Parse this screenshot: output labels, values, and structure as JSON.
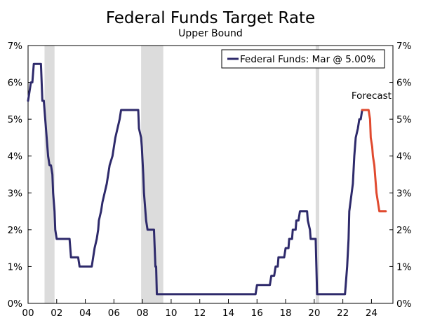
{
  "chart_data": {
    "type": "line",
    "title": "Federal Funds Target Rate",
    "subtitle": "Upper Bound",
    "xlabel": "",
    "ylabel": "",
    "xlim": [
      2000,
      2025.5
    ],
    "ylim": [
      0,
      7
    ],
    "x_ticks": [
      {
        "value": 2000,
        "label": "00"
      },
      {
        "value": 2002,
        "label": "02"
      },
      {
        "value": 2004,
        "label": "04"
      },
      {
        "value": 2006,
        "label": "06"
      },
      {
        "value": 2008,
        "label": "08"
      },
      {
        "value": 2010,
        "label": "10"
      },
      {
        "value": 2012,
        "label": "12"
      },
      {
        "value": 2014,
        "label": "14"
      },
      {
        "value": 2016,
        "label": "16"
      },
      {
        "value": 2018,
        "label": "18"
      },
      {
        "value": 2020,
        "label": "20"
      },
      {
        "value": 2022,
        "label": "22"
      },
      {
        "value": 2024,
        "label": "24"
      }
    ],
    "y_ticks": [
      {
        "value": 0,
        "label": "0%"
      },
      {
        "value": 1,
        "label": "1%"
      },
      {
        "value": 2,
        "label": "2%"
      },
      {
        "value": 3,
        "label": "3%"
      },
      {
        "value": 4,
        "label": "4%"
      },
      {
        "value": 5,
        "label": "5%"
      },
      {
        "value": 6,
        "label": "6%"
      },
      {
        "value": 7,
        "label": "7%"
      }
    ],
    "recessions": [
      {
        "start": 2001.15,
        "end": 2001.85
      },
      {
        "start": 2007.9,
        "end": 2009.45
      },
      {
        "start": 2020.1,
        "end": 2020.35
      }
    ],
    "legend": {
      "position": "top-right",
      "entries": [
        {
          "label": "Federal Funds: Mar @ 5.00%",
          "color": "#2e2a6b"
        }
      ]
    },
    "annotations": [
      {
        "text": "Forecast",
        "x": 2024.0,
        "y": 5.55
      }
    ],
    "series": [
      {
        "name": "Federal Funds",
        "color": "#2e2a6b",
        "points": [
          [
            2000.0,
            5.5
          ],
          [
            2000.1,
            5.75
          ],
          [
            2000.2,
            6.0
          ],
          [
            2000.3,
            6.0
          ],
          [
            2000.4,
            6.5
          ],
          [
            2000.8,
            6.5
          ],
          [
            2000.9,
            6.5
          ],
          [
            2001.0,
            5.5
          ],
          [
            2001.1,
            5.5
          ],
          [
            2001.2,
            5.0
          ],
          [
            2001.3,
            4.5
          ],
          [
            2001.4,
            4.0
          ],
          [
            2001.5,
            3.75
          ],
          [
            2001.6,
            3.75
          ],
          [
            2001.7,
            3.5
          ],
          [
            2001.75,
            3.0
          ],
          [
            2001.85,
            2.5
          ],
          [
            2001.9,
            2.0
          ],
          [
            2002.0,
            1.75
          ],
          [
            2002.9,
            1.75
          ],
          [
            2003.0,
            1.25
          ],
          [
            2003.5,
            1.25
          ],
          [
            2003.6,
            1.0
          ],
          [
            2004.45,
            1.0
          ],
          [
            2004.55,
            1.25
          ],
          [
            2004.65,
            1.5
          ],
          [
            2004.8,
            1.75
          ],
          [
            2004.9,
            2.0
          ],
          [
            2004.95,
            2.25
          ],
          [
            2005.1,
            2.5
          ],
          [
            2005.2,
            2.75
          ],
          [
            2005.35,
            3.0
          ],
          [
            2005.5,
            3.25
          ],
          [
            2005.6,
            3.5
          ],
          [
            2005.7,
            3.75
          ],
          [
            2005.9,
            4.0
          ],
          [
            2006.0,
            4.25
          ],
          [
            2006.1,
            4.5
          ],
          [
            2006.25,
            4.75
          ],
          [
            2006.4,
            5.0
          ],
          [
            2006.5,
            5.25
          ],
          [
            2007.7,
            5.25
          ],
          [
            2007.75,
            4.75
          ],
          [
            2007.9,
            4.5
          ],
          [
            2007.95,
            4.25
          ],
          [
            2008.05,
            3.5
          ],
          [
            2008.1,
            3.0
          ],
          [
            2008.25,
            2.25
          ],
          [
            2008.35,
            2.0
          ],
          [
            2008.8,
            2.0
          ],
          [
            2008.85,
            1.5
          ],
          [
            2008.9,
            1.0
          ],
          [
            2008.95,
            1.0
          ],
          [
            2009.0,
            0.25
          ],
          [
            2015.9,
            0.25
          ],
          [
            2016.0,
            0.5
          ],
          [
            2016.9,
            0.5
          ],
          [
            2017.0,
            0.75
          ],
          [
            2017.2,
            0.75
          ],
          [
            2017.3,
            1.0
          ],
          [
            2017.45,
            1.0
          ],
          [
            2017.5,
            1.25
          ],
          [
            2017.9,
            1.25
          ],
          [
            2018.0,
            1.5
          ],
          [
            2018.2,
            1.5
          ],
          [
            2018.25,
            1.75
          ],
          [
            2018.45,
            1.75
          ],
          [
            2018.5,
            2.0
          ],
          [
            2018.7,
            2.0
          ],
          [
            2018.75,
            2.25
          ],
          [
            2018.9,
            2.25
          ],
          [
            2019.0,
            2.5
          ],
          [
            2019.5,
            2.5
          ],
          [
            2019.55,
            2.25
          ],
          [
            2019.7,
            2.0
          ],
          [
            2019.75,
            1.75
          ],
          [
            2020.1,
            1.75
          ],
          [
            2020.15,
            1.0
          ],
          [
            2020.2,
            0.25
          ],
          [
            2022.15,
            0.25
          ],
          [
            2022.2,
            0.5
          ],
          [
            2022.3,
            1.0
          ],
          [
            2022.4,
            1.75
          ],
          [
            2022.45,
            2.5
          ],
          [
            2022.7,
            3.25
          ],
          [
            2022.8,
            4.0
          ],
          [
            2022.9,
            4.5
          ],
          [
            2023.05,
            4.75
          ],
          [
            2023.15,
            5.0
          ],
          [
            2023.25,
            5.0
          ],
          [
            2023.35,
            5.25
          ]
        ]
      },
      {
        "name": "Forecast",
        "color": "#e04a2f",
        "points": [
          [
            2023.35,
            5.25
          ],
          [
            2023.8,
            5.25
          ],
          [
            2023.9,
            5.0
          ],
          [
            2023.95,
            4.5
          ],
          [
            2024.05,
            4.25
          ],
          [
            2024.1,
            4.0
          ],
          [
            2024.2,
            3.75
          ],
          [
            2024.3,
            3.25
          ],
          [
            2024.35,
            3.0
          ],
          [
            2024.45,
            2.75
          ],
          [
            2024.55,
            2.5
          ],
          [
            2025.0,
            2.5
          ]
        ]
      }
    ]
  }
}
